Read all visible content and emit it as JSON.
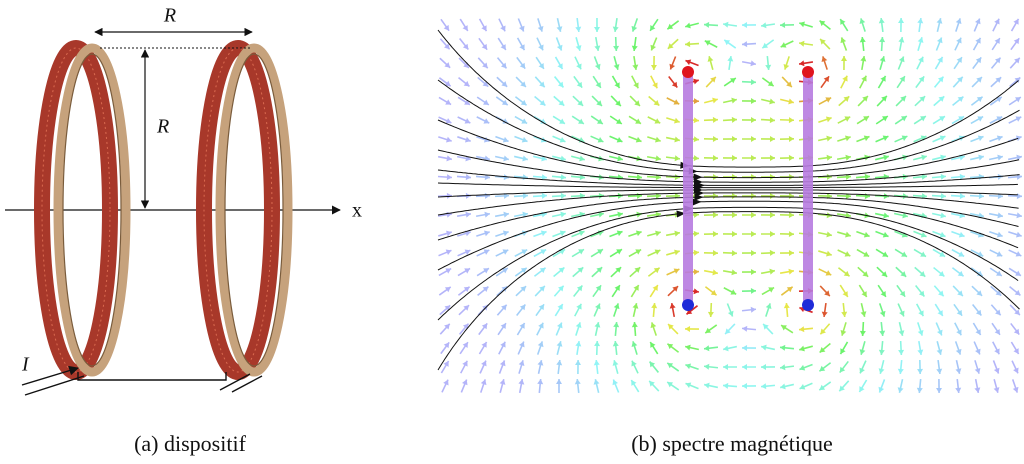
{
  "figure": {
    "panel_a": {
      "label_top_R": "R",
      "label_side_R": "R",
      "axis_label": "x",
      "current_label": "I",
      "caption": "(a) dispositif"
    },
    "panel_b": {
      "caption": "(b) spectre magnétique"
    }
  }
}
